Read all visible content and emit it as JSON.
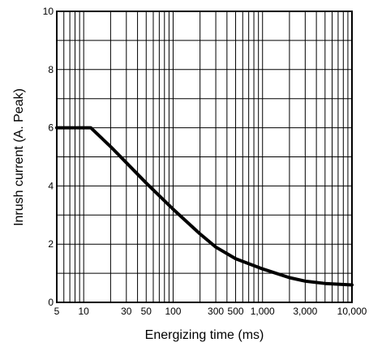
{
  "chart_data": {
    "type": "line",
    "xlabel": "Energizing time (ms)",
    "ylabel": "Inrush current  (A. Peak)",
    "x_scale": "log",
    "xlim": [
      5,
      10000
    ],
    "ylim": [
      0,
      10
    ],
    "grid": true,
    "x_ticks": [
      {
        "value": 5,
        "label": "5"
      },
      {
        "value": 10,
        "label": "10"
      },
      {
        "value": 30,
        "label": "30"
      },
      {
        "value": 50,
        "label": "50"
      },
      {
        "value": 100,
        "label": "100"
      },
      {
        "value": 300,
        "label": "300"
      },
      {
        "value": 500,
        "label": "500"
      },
      {
        "value": 1000,
        "label": "1,000"
      },
      {
        "value": 3000,
        "label": "3,000"
      },
      {
        "value": 10000,
        "label": "10,000"
      }
    ],
    "y_ticks": [
      {
        "value": 0,
        "label": "0"
      },
      {
        "value": 2,
        "label": "2"
      },
      {
        "value": 4,
        "label": "4"
      },
      {
        "value": 6,
        "label": "6"
      },
      {
        "value": 8,
        "label": "8"
      },
      {
        "value": 10,
        "label": "10"
      }
    ],
    "series": [
      {
        "x": [
          5,
          12,
          20,
          30,
          50,
          100,
          200,
          300,
          500,
          1000,
          2000,
          3000,
          5000,
          10000
        ],
        "y": [
          6.0,
          6.0,
          5.35,
          4.8,
          4.1,
          3.2,
          2.35,
          1.9,
          1.5,
          1.15,
          0.85,
          0.73,
          0.65,
          0.6
        ]
      }
    ]
  }
}
